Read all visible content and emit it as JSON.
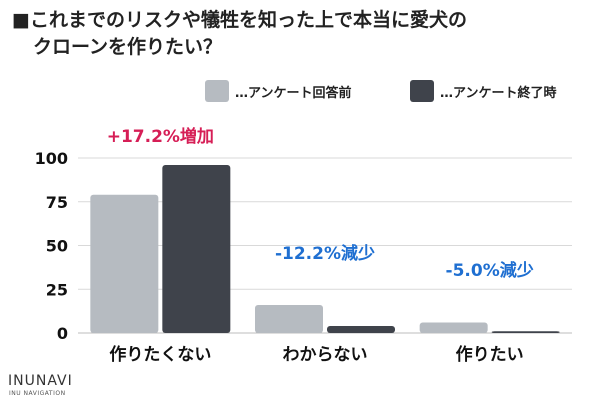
{
  "title_line1": "■これまでのリスクや犠牲を知った上で本当に愛犬の",
  "title_line2": "クローンを作りたい？",
  "logo": {
    "name": "INUNAVI",
    "sub": "INU NAVIGATION"
  },
  "colors": {
    "before": "#b6bbc1",
    "after": "#3f434b",
    "increase": "#d61e56",
    "decrease": "#1f6fd1",
    "grid": "#d9d9d9"
  },
  "chart_data": {
    "type": "bar",
    "categories": [
      "作りたくない",
      "わからない",
      "作りたい"
    ],
    "series": [
      {
        "name": "…アンケート回答前",
        "values": [
          79,
          16,
          6
        ]
      },
      {
        "name": "…アンケート終了時",
        "values": [
          96,
          4,
          1
        ]
      }
    ],
    "ylim": [
      0,
      100
    ],
    "yticks": [
      0,
      25,
      50,
      75,
      100
    ],
    "annotations": [
      {
        "category": "作りたくない",
        "text": "+17.2%増加",
        "kind": "increase"
      },
      {
        "category": "わからない",
        "text": "-12.2%減少",
        "kind": "decrease"
      },
      {
        "category": "作りたい",
        "text": "-5.0%減少",
        "kind": "decrease"
      }
    ],
    "legend_position": "top-right",
    "grid": true
  }
}
